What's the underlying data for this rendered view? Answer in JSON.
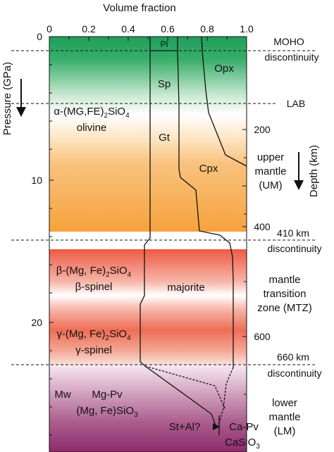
{
  "top_axis": {
    "title": "Volume fraction",
    "ticks": [
      "0",
      "0.2",
      "0.4",
      "0.6",
      "0.8",
      "1.0"
    ]
  },
  "left_axis": {
    "title": "Pressure (GPa)",
    "ticks": [
      "0",
      "10",
      "20"
    ]
  },
  "right_axis": {
    "title": "Depth (km)",
    "ticks": [
      "200",
      "300",
      "400",
      "600"
    ]
  },
  "minerals": {
    "pl": "Pl",
    "opx": "Opx",
    "sp": "Sp",
    "gt": "Gt",
    "cpx": "Cpx",
    "majorite": "majorite",
    "mw": "Mw",
    "mg_pv": "Mg-Pv",
    "mg_pv_formula": "(Mg, Fe)SiO",
    "mg_pv_sub": "3",
    "st_al": "St+Al?",
    "ca_pv": "Ca-Pv",
    "ca_pv_formula": "CaSiO",
    "ca_pv_sub": "3"
  },
  "phases": {
    "olivine_formula_pre": "α-(MG,FE)",
    "olivine_sub1": "2",
    "olivine_formula_post": "SiO",
    "olivine_sub2": "4",
    "olivine_name": "olivine",
    "beta_formula_pre": "β-(Mg, Fe)",
    "beta_sub1": "2",
    "beta_formula_post": "SiO",
    "beta_sub2": "4",
    "beta_name": "β-spinel",
    "gamma_formula_pre": "γ-(Mg, Fe)",
    "gamma_sub1": "2",
    "gamma_formula_post": "SiO",
    "gamma_sub2": "4",
    "gamma_name": "γ-spinel"
  },
  "boundaries": {
    "moho_1": "MOHO",
    "moho_2": "discontinuity",
    "lab": "LAB",
    "d410_1": "410 km",
    "d410_2": "discontinuity",
    "d660_1": "660 km",
    "d660_2": "discontinuity"
  },
  "zones": {
    "um_1": "upper",
    "um_2": "mantle",
    "um_3": "(UM)",
    "mtz_1": "mantle",
    "mtz_2": "transition",
    "mtz_3": "zone (MTZ)",
    "lm_1": "lower",
    "lm_2": "mantle",
    "lm_3": "(LM)"
  },
  "colors": {
    "green": "#1f9e5a",
    "orange": "#f6a23c",
    "red": "#ee5a44",
    "purple": "#8c2a6c"
  }
}
